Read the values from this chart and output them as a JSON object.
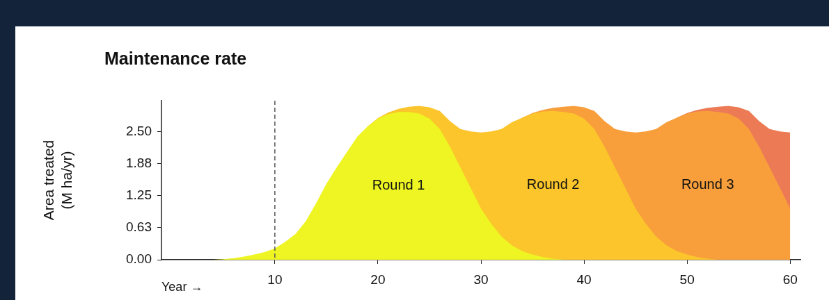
{
  "chart_data": {
    "type": "area",
    "title": "Maintenance rate",
    "xlabel": "Year →",
    "ylabel": "Area treated\n(M ha/yr)",
    "stacked": true,
    "legend": false,
    "grid": false,
    "x": [
      4,
      5,
      6,
      7,
      8,
      9,
      10,
      11,
      12,
      13,
      14,
      15,
      16,
      17,
      18,
      19,
      20,
      21,
      22,
      23,
      24,
      25,
      26,
      27,
      28,
      29,
      30,
      31,
      32,
      33,
      34,
      35,
      36,
      37,
      38,
      39,
      40,
      41,
      42,
      43,
      44,
      45,
      46,
      47,
      48,
      49,
      50,
      51,
      52,
      53,
      54,
      55,
      56,
      57,
      58,
      59,
      60
    ],
    "xlim": [
      -1,
      61
    ],
    "xticks": [
      10,
      20,
      30,
      40,
      50,
      60
    ],
    "ylim": [
      0,
      3.1
    ],
    "yticks": [
      {
        "value": 0,
        "label": "0.00"
      },
      {
        "value": 0.625,
        "label": "0.63"
      },
      {
        "value": 1.25,
        "label": "1.25"
      },
      {
        "value": 1.875,
        "label": "1.88"
      },
      {
        "value": 2.5,
        "label": "2.50"
      }
    ],
    "ref_lines": [
      {
        "axis": "x",
        "value": 10,
        "color": "#555555",
        "line_style": "dashed"
      }
    ],
    "series": [
      {
        "name": "Round 1",
        "color": "#eef522",
        "values": [
          0,
          0.01,
          0.03,
          0.06,
          0.1,
          0.15,
          0.22,
          0.35,
          0.5,
          0.75,
          1.1,
          1.48,
          1.8,
          2.1,
          2.4,
          2.6,
          2.75,
          2.84,
          2.88,
          2.88,
          2.85,
          2.75,
          2.55,
          2.2,
          1.8,
          1.4,
          1.0,
          0.7,
          0.45,
          0.28,
          0.17,
          0.1,
          0.05,
          0.02,
          0,
          null,
          null,
          null,
          null,
          null,
          null,
          null,
          null,
          null,
          null,
          null,
          null,
          null,
          null,
          null,
          null,
          null,
          null,
          null,
          null,
          null,
          null
        ]
      },
      {
        "name": "Round 2",
        "color": "#fbc52b",
        "values": [
          null,
          null,
          null,
          null,
          null,
          null,
          null,
          null,
          null,
          null,
          null,
          null,
          null,
          null,
          null,
          0,
          0.01,
          0.03,
          0.06,
          0.1,
          0.15,
          0.22,
          0.35,
          0.5,
          0.75,
          1.1,
          1.48,
          1.8,
          2.1,
          2.4,
          2.6,
          2.75,
          2.84,
          2.88,
          2.88,
          2.85,
          2.75,
          2.55,
          2.2,
          1.8,
          1.4,
          1.0,
          0.7,
          0.45,
          0.28,
          0.17,
          0.1,
          0.05,
          0.02,
          0,
          null,
          null,
          null,
          null,
          null,
          null,
          null
        ]
      },
      {
        "name": "Round 3",
        "color": "#f89f3c",
        "values": [
          null,
          null,
          null,
          null,
          null,
          null,
          null,
          null,
          null,
          null,
          null,
          null,
          null,
          null,
          null,
          null,
          null,
          null,
          null,
          null,
          null,
          null,
          null,
          null,
          null,
          null,
          null,
          null,
          null,
          null,
          0,
          0.01,
          0.03,
          0.06,
          0.1,
          0.15,
          0.22,
          0.35,
          0.5,
          0.75,
          1.1,
          1.48,
          1.8,
          2.1,
          2.4,
          2.6,
          2.75,
          2.84,
          2.88,
          2.88,
          2.85,
          2.75,
          2.55,
          2.2,
          1.8,
          1.4,
          1.0
        ]
      },
      {
        "color": "#ec7b55",
        "values": [
          null,
          null,
          null,
          null,
          null,
          null,
          null,
          null,
          null,
          null,
          null,
          null,
          null,
          null,
          null,
          null,
          null,
          null,
          null,
          null,
          null,
          null,
          null,
          null,
          null,
          null,
          null,
          null,
          null,
          null,
          null,
          null,
          null,
          null,
          null,
          null,
          null,
          null,
          null,
          null,
          null,
          null,
          null,
          null,
          null,
          0,
          0.01,
          0.03,
          0.06,
          0.1,
          0.15,
          0.22,
          0.35,
          0.5,
          0.75,
          1.1,
          1.48
        ]
      }
    ]
  }
}
